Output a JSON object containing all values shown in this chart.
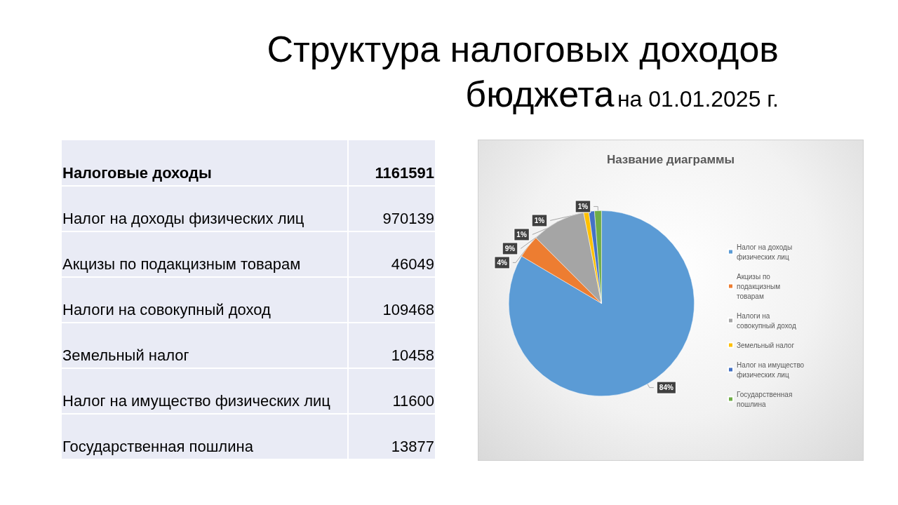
{
  "chart_data": [
    {
      "type": "other",
      "annotations": [
        "Структура налоговых доходов бюджета",
        "на 01.01.2025 г.",
        "Налоговые доходы"
      ],
      "categories": [
        "Налог на доходы физических лиц",
        "Акцизы по подакцизным товарам",
        "Налоги на совокупный доход",
        "Земельный налог",
        "Налог на имущество физических лиц",
        "Государственная пошлина"
      ],
      "values": [
        970139,
        46049,
        109468,
        10458,
        11600,
        13877
      ],
      "data_labels": true,
      "totals": [
        "1161591"
      ]
    },
    {
      "type": "pie",
      "title": "Название диаграммы",
      "categories": [
        "Налог на доходы физических лиц",
        "Акцизы по подакцизным товарам",
        "Налоги на совокупный доход",
        "Земельный налог",
        "Налог на имущество физических лиц",
        "Государственная пошлина"
      ],
      "values": [
        83.5,
        4.0,
        9.4,
        0.9,
        1.0,
        1.2
      ],
      "value_labels": [
        "84%",
        "4%",
        "9%",
        "1%",
        "1%",
        "1%"
      ],
      "colors": [
        "#5b9bd5",
        "#ed7d31",
        "#a5a5a5",
        "#ffc000",
        "#4472c4",
        "#70ad47"
      ],
      "legend": "right"
    }
  ]
}
